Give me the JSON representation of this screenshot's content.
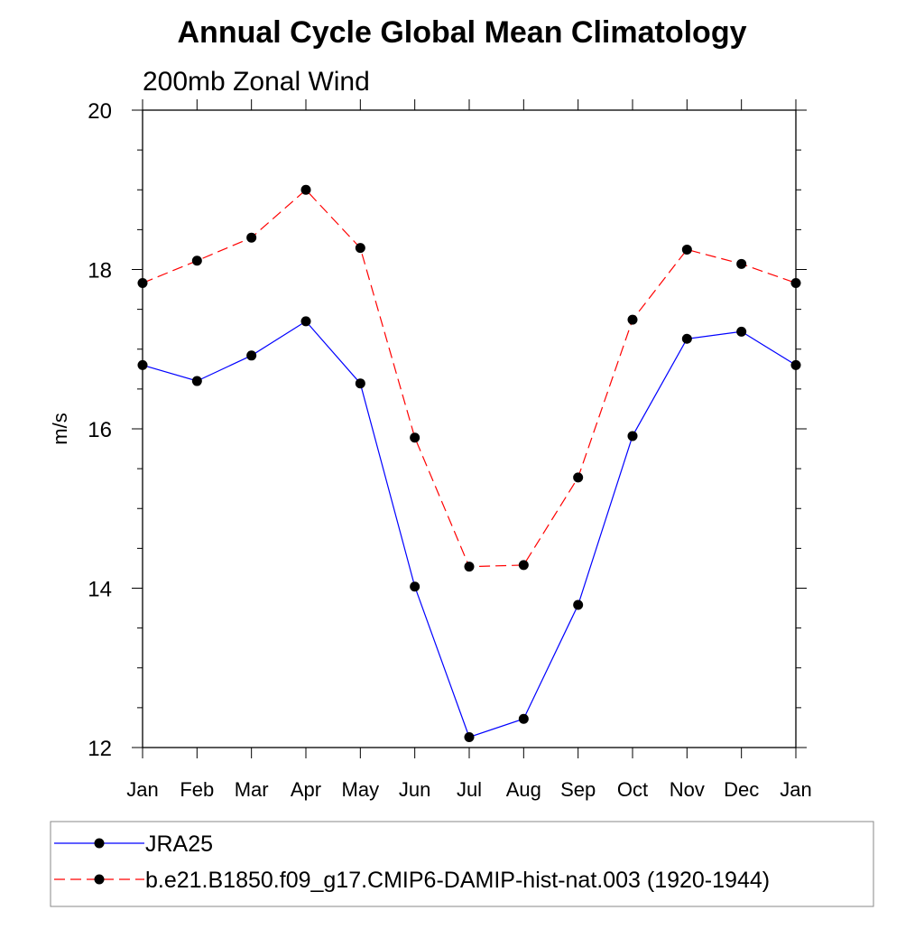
{
  "chart_data": {
    "type": "line",
    "title": "Annual Cycle Global Mean Climatology",
    "subtitle": "200mb Zonal Wind",
    "xlabel": "",
    "ylabel": "m/s",
    "categories": [
      "Jan",
      "Feb",
      "Mar",
      "Apr",
      "May",
      "Jun",
      "Jul",
      "Aug",
      "Sep",
      "Oct",
      "Nov",
      "Dec",
      "Jan"
    ],
    "ylim": [
      12,
      20
    ],
    "yticks": [
      "12",
      "14",
      "16",
      "18",
      "20"
    ],
    "grid": false,
    "legend_position": "bottom",
    "series": [
      {
        "name": "JRA25",
        "color": "#0000ff",
        "dash": "solid",
        "marker": "filled-circle",
        "values": [
          16.8,
          16.6,
          16.92,
          17.35,
          16.57,
          14.02,
          12.13,
          12.36,
          13.79,
          15.91,
          17.13,
          17.22,
          16.8
        ]
      },
      {
        "name": "b.e21.B1850.f09_g17.CMIP6-DAMIP-hist-nat.003 (1920-1944)",
        "color": "#ff0000",
        "dash": "dashed",
        "marker": "filled-circle",
        "values": [
          17.83,
          18.11,
          18.4,
          19.0,
          18.27,
          15.89,
          14.27,
          14.29,
          15.39,
          17.37,
          18.25,
          18.07,
          17.83
        ]
      }
    ]
  }
}
